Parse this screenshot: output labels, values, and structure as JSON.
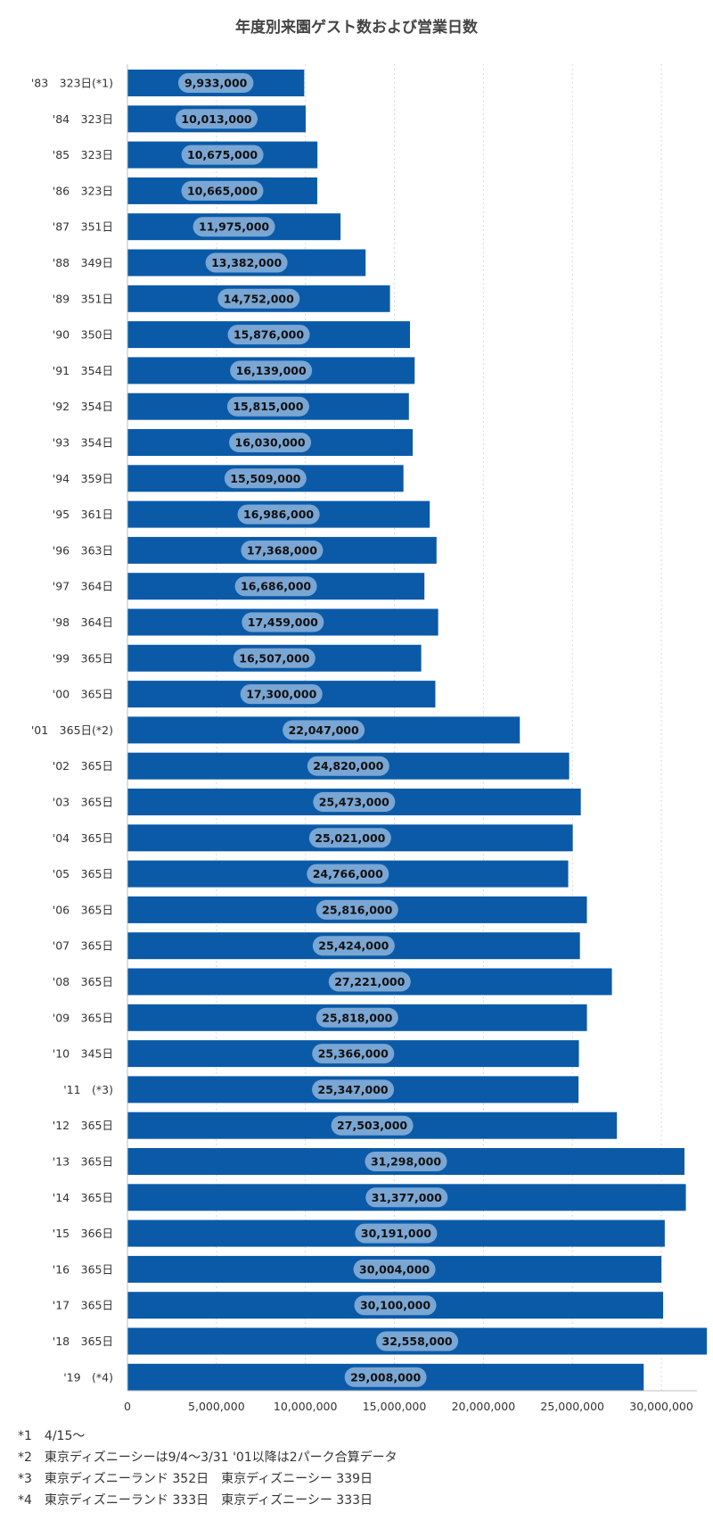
{
  "chart_data": {
    "type": "bar",
    "orientation": "horizontal",
    "title": "年度別来園ゲスト数および営業日数",
    "categories": [
      "'83　323日(*1)",
      "'84　323日",
      "'85　323日",
      "'86　323日",
      "'87　351日",
      "'88　349日",
      "'89　351日",
      "'90　350日",
      "'91　354日",
      "'92　354日",
      "'93　354日",
      "'94　359日",
      "'95　361日",
      "'96　363日",
      "'97　364日",
      "'98　364日",
      "'99　365日",
      "'00　365日",
      "'01　365日(*2)",
      "'02　365日",
      "'03　365日",
      "'04　365日",
      "'05　365日",
      "'06　365日",
      "'07　365日",
      "'08　365日",
      "'09　365日",
      "'10　345日",
      "'11　(*3)",
      "'12　365日",
      "'13　365日",
      "'14　365日",
      "'15　366日",
      "'16　365日",
      "'17　365日",
      "'18　365日",
      "'19　(*4)"
    ],
    "values": [
      9933000,
      10013000,
      10675000,
      10665000,
      11975000,
      13382000,
      14752000,
      15876000,
      16139000,
      15815000,
      16030000,
      15509000,
      16986000,
      17368000,
      16686000,
      17459000,
      16507000,
      17300000,
      22047000,
      24820000,
      25473000,
      25021000,
      24766000,
      25816000,
      25424000,
      27221000,
      25818000,
      25366000,
      25347000,
      27503000,
      31298000,
      31377000,
      30191000,
      30004000,
      30100000,
      32558000,
      29008000
    ],
    "data_labels": [
      "9,933,000",
      "10,013,000",
      "10,675,000",
      "10,665,000",
      "11,975,000",
      "13,382,000",
      "14,752,000",
      "15,876,000",
      "16,139,000",
      "15,815,000",
      "16,030,000",
      "15,509,000",
      "16,986,000",
      "17,368,000",
      "16,686,000",
      "17,459,000",
      "16,507,000",
      "17,300,000",
      "22,047,000",
      "24,820,000",
      "25,473,000",
      "25,021,000",
      "24,766,000",
      "25,816,000",
      "25,424,000",
      "27,221,000",
      "25,818,000",
      "25,366,000",
      "25,347,000",
      "27,503,000",
      "31,298,000",
      "31,377,000",
      "30,191,000",
      "30,004,000",
      "30,100,000",
      "32,558,000",
      "29,008,000"
    ],
    "xlim": [
      0,
      32000000
    ],
    "x_ticks": [
      0,
      5000000,
      10000000,
      15000000,
      20000000,
      25000000,
      30000000
    ],
    "x_tick_labels": [
      "0",
      "5,000,000",
      "10,000,000",
      "15,000,000",
      "20,000,000",
      "25,000,000",
      "30,000,000"
    ],
    "grid": true,
    "colors": {
      "bar": "#0a5aa8",
      "label_bubble": "#7aa6d4",
      "grid": "#d9d9d9",
      "axis": "#bfbfbf"
    }
  },
  "footnotes": [
    "*1　4/15～",
    "*2　東京ディズニーシーは9/4～3/31 '01以降は2パーク合算データ",
    "*3　東京ディズニーランド 352日　東京ディズニーシー 339日",
    "*4　東京ディズニーランド 333日　東京ディズニーシー 333日"
  ]
}
